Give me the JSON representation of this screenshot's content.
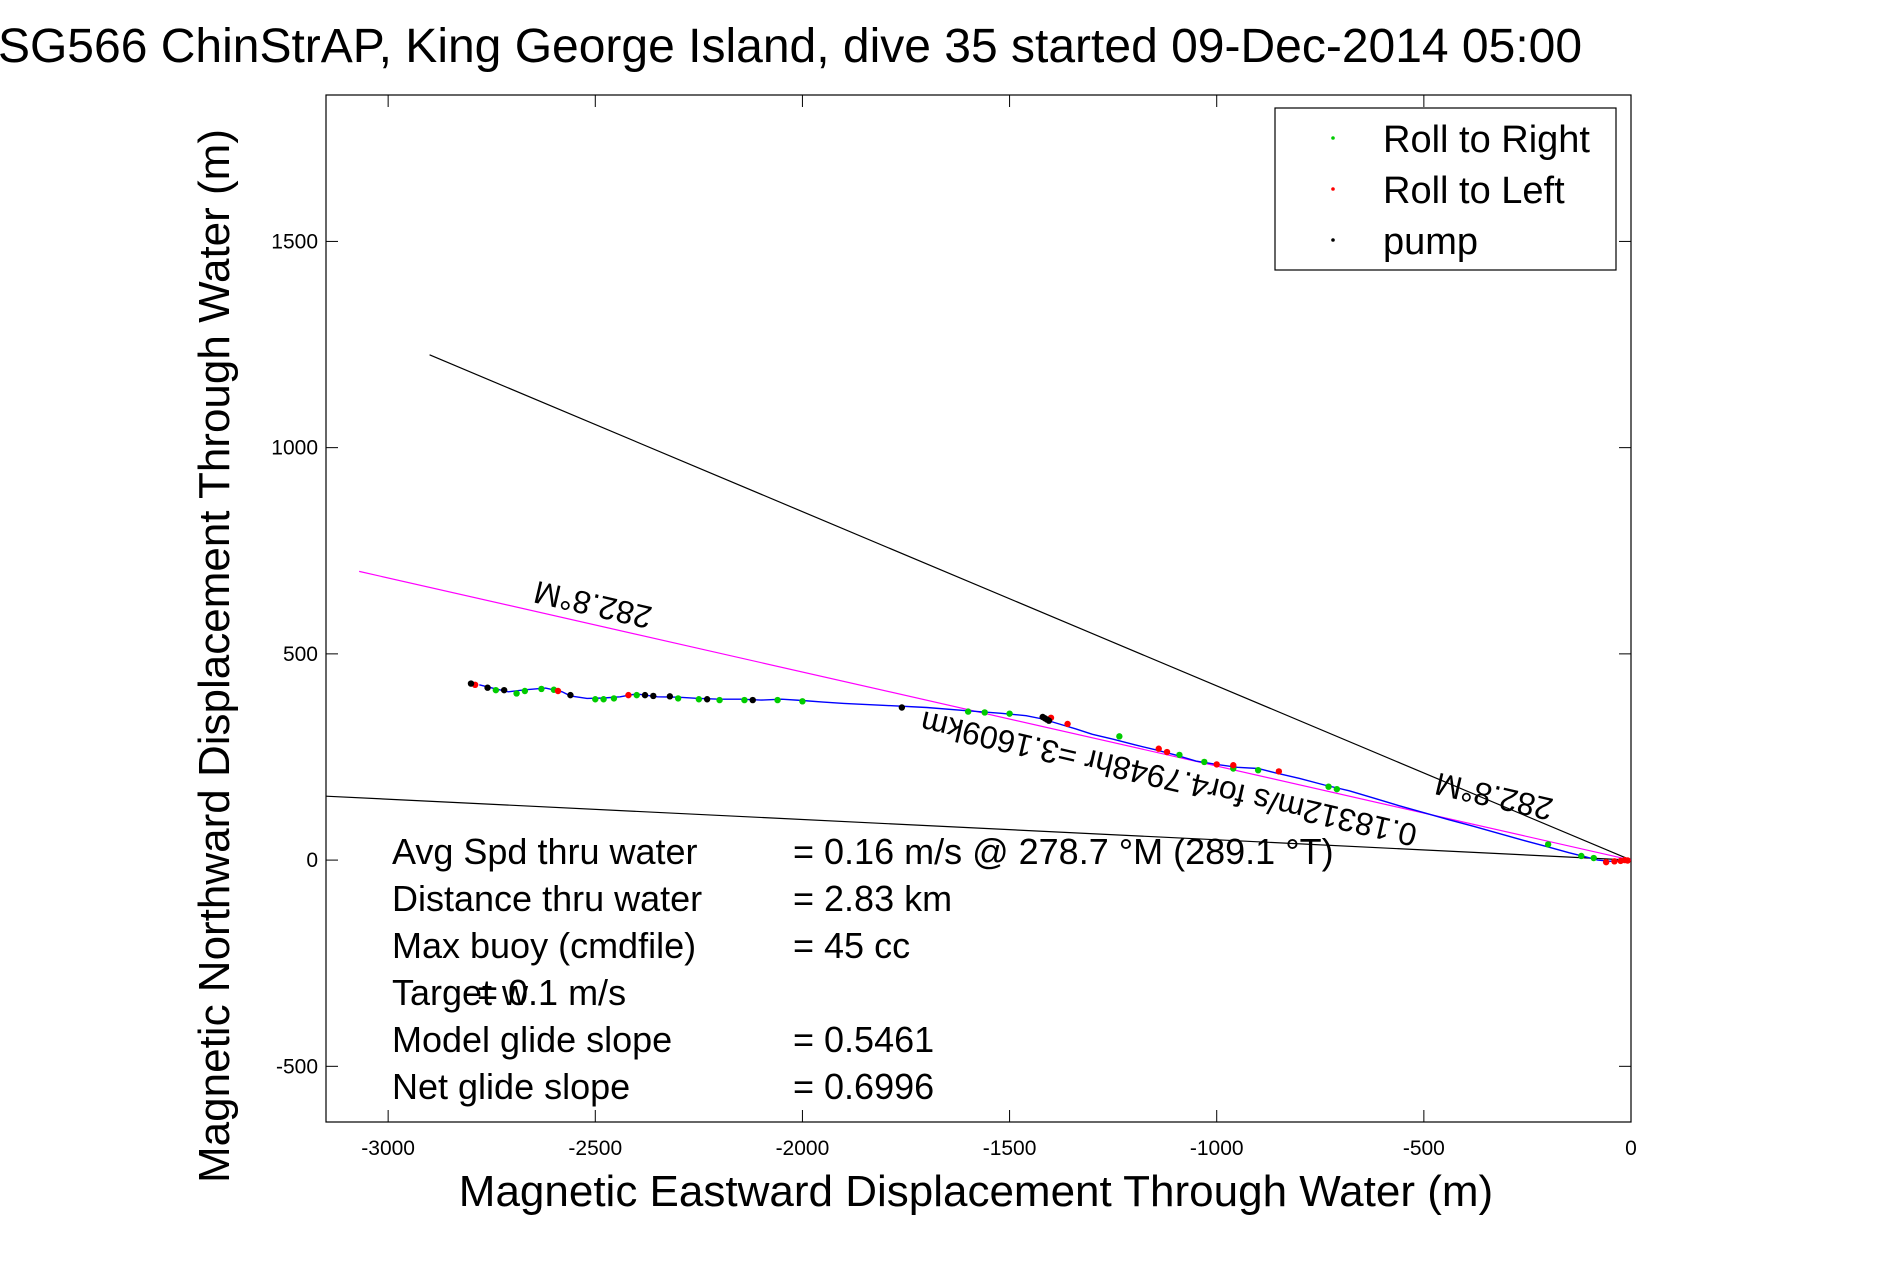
{
  "chart_data": {
    "type": "scatter",
    "title": "SG566 ChinStrAP, King George Island, dive 35 started 09-Dec-2014 05:00",
    "xlabel": "Magnetic Eastward Displacement Through Water (m)",
    "ylabel": "Magnetic Northward Displacement Through Water (m)",
    "xlim": [
      -3150,
      0
    ],
    "ylim": [
      -635,
      1855
    ],
    "xticks": [
      -3000,
      -2500,
      -2000,
      -1500,
      -1000,
      -500,
      0
    ],
    "yticks": [
      -500,
      0,
      500,
      1000,
      1500
    ],
    "grid": false,
    "legend_position": "top-right",
    "legend": [
      {
        "label": "Roll to Right",
        "color": "#00cc00"
      },
      {
        "label": "Roll to Left",
        "color": "#ff0000"
      },
      {
        "label": "pump",
        "color": "#000000"
      }
    ],
    "track": {
      "color": "#0000ff",
      "points": [
        [
          -2780,
          425
        ],
        [
          -2740,
          415
        ],
        [
          -2710,
          408
        ],
        [
          -2670,
          413
        ],
        [
          -2620,
          417
        ],
        [
          -2580,
          408
        ],
        [
          -2560,
          398
        ],
        [
          -2520,
          392
        ],
        [
          -2480,
          393
        ],
        [
          -2440,
          396
        ],
        [
          -2400,
          403
        ],
        [
          -2350,
          396
        ],
        [
          -2300,
          395
        ],
        [
          -2250,
          392
        ],
        [
          -2200,
          390
        ],
        [
          -2150,
          390
        ],
        [
          -2100,
          388
        ],
        [
          -2050,
          390
        ],
        [
          -2000,
          387
        ],
        [
          -1950,
          383
        ],
        [
          -1900,
          380
        ],
        [
          -1800,
          375
        ],
        [
          -1700,
          370
        ],
        [
          -1600,
          362
        ],
        [
          -1520,
          356
        ],
        [
          -1460,
          350
        ],
        [
          -1420,
          342
        ],
        [
          -1380,
          330
        ],
        [
          -1340,
          318
        ],
        [
          -1300,
          305
        ],
        [
          -1250,
          293
        ],
        [
          -1200,
          280
        ],
        [
          -1150,
          268
        ],
        [
          -1100,
          255
        ],
        [
          -1050,
          240
        ],
        [
          -1000,
          232
        ],
        [
          -950,
          225
        ],
        [
          -900,
          222
        ],
        [
          -860,
          212
        ],
        [
          -800,
          198
        ],
        [
          -740,
          182
        ],
        [
          -680,
          168
        ],
        [
          -620,
          150
        ],
        [
          -560,
          132
        ],
        [
          -500,
          115
        ],
        [
          -440,
          98
        ],
        [
          -380,
          82
        ],
        [
          -320,
          65
        ],
        [
          -260,
          48
        ],
        [
          -200,
          32
        ],
        [
          -150,
          18
        ],
        [
          -110,
          8
        ],
        [
          -80,
          0
        ],
        [
          -50,
          -3
        ],
        [
          -25,
          0
        ],
        [
          0,
          0
        ]
      ]
    },
    "roll_right": [
      [
        -2740,
        412
      ],
      [
        -2690,
        404
      ],
      [
        -2670,
        410
      ],
      [
        -2630,
        415
      ],
      [
        -2600,
        413
      ],
      [
        -2500,
        390
      ],
      [
        -2480,
        390
      ],
      [
        -2455,
        392
      ],
      [
        -2400,
        400
      ],
      [
        -2300,
        392
      ],
      [
        -2250,
        390
      ],
      [
        -2200,
        388
      ],
      [
        -2140,
        388
      ],
      [
        -2060,
        388
      ],
      [
        -2000,
        385
      ],
      [
        -1600,
        360
      ],
      [
        -1560,
        358
      ],
      [
        -1500,
        355
      ],
      [
        -1235,
        300
      ],
      [
        -1090,
        255
      ],
      [
        -1030,
        238
      ],
      [
        -960,
        222
      ],
      [
        -900,
        218
      ],
      [
        -730,
        178
      ],
      [
        -710,
        172
      ],
      [
        -200,
        38
      ],
      [
        -120,
        10
      ],
      [
        -90,
        5
      ]
    ],
    "roll_left": [
      [
        -2790,
        425
      ],
      [
        -2590,
        410
      ],
      [
        -2420,
        400
      ],
      [
        -1400,
        345
      ],
      [
        -1360,
        330
      ],
      [
        -1140,
        270
      ],
      [
        -1120,
        262
      ],
      [
        -1000,
        232
      ],
      [
        -960,
        230
      ],
      [
        -850,
        215
      ],
      [
        -60,
        -5
      ],
      [
        -40,
        -3
      ],
      [
        -25,
        -2
      ],
      [
        -15,
        0
      ],
      [
        -8,
        -1
      ]
    ],
    "pump": [
      [
        -2800,
        428
      ],
      [
        -2760,
        418
      ],
      [
        -2720,
        412
      ],
      [
        -2560,
        400
      ],
      [
        -2380,
        400
      ],
      [
        -2360,
        398
      ],
      [
        -2320,
        397
      ],
      [
        -2230,
        390
      ],
      [
        -2120,
        388
      ],
      [
        -1760,
        370
      ],
      [
        -1420,
        347
      ],
      [
        -1415,
        344
      ],
      [
        -1410,
        341
      ],
      [
        -1405,
        338
      ]
    ],
    "reference_lines": [
      {
        "color": "#000000",
        "from": [
          -2900,
          1225
        ],
        "to": [
          0,
          0
        ]
      },
      {
        "color": "#ff00ff",
        "from": [
          -3070,
          700
        ],
        "to": [
          0,
          0
        ]
      },
      {
        "color": "#000000",
        "from": [
          -3150,
          155
        ],
        "to": [
          0,
          0
        ]
      }
    ],
    "annotations": [
      {
        "text": "282.8°M",
        "x": -2500,
        "y": 645,
        "rotate": 193
      },
      {
        "text": "0.18312m/s for4.7948hr =3.1609km",
        "x": -1110,
        "y": 223,
        "rotate": 193
      },
      {
        "text": "282.8°M",
        "x": -325,
        "y": 180,
        "rotate": 193
      }
    ],
    "stats": [
      {
        "label": "Avg Spd thru water",
        "value": "=  0.16 m/s @ 278.7 °M (289.1 °T)"
      },
      {
        "label": "Distance thru water",
        "value": "=  2.83 km"
      },
      {
        "label": "Max buoy (cmdfile)",
        "value": "= 45 cc"
      },
      {
        "label": "Target w",
        "value": "= 0.1 m/s"
      },
      {
        "label": "Model glide slope",
        "value": "= 0.5461"
      },
      {
        "label": "Net glide slope",
        "value": "= 0.6996"
      }
    ]
  }
}
